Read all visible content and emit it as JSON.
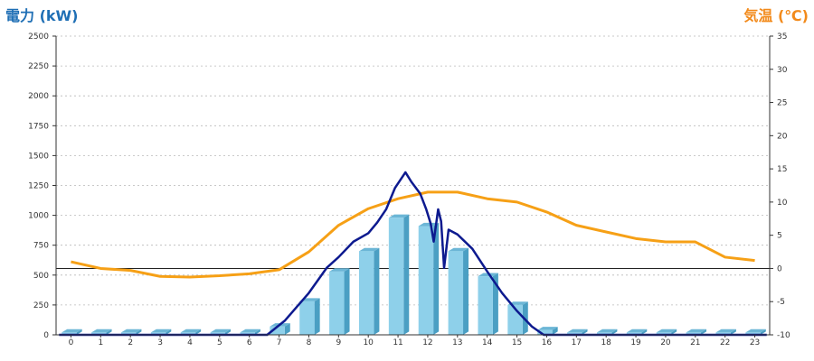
{
  "chart_data": {
    "type": "bar+line",
    "title": "",
    "left_axis": {
      "label": "電力 (kW)",
      "min": 0,
      "max": 2500,
      "ticks": [
        0,
        250,
        500,
        750,
        1000,
        1250,
        1500,
        1750,
        2000,
        2250,
        2500
      ]
    },
    "right_axis": {
      "label": "気温 (℃)",
      "min": -10,
      "max": 35,
      "ticks": [
        -10,
        -5,
        0,
        5,
        10,
        15,
        20,
        25,
        30,
        35
      ]
    },
    "categories": [
      "0",
      "1",
      "2",
      "3",
      "4",
      "5",
      "6",
      "7",
      "8",
      "9",
      "10",
      "11",
      "12",
      "13",
      "14",
      "15",
      "16",
      "17",
      "18",
      "19",
      "20",
      "21",
      "22",
      "23"
    ],
    "bars": {
      "axis": "left",
      "values": [
        20,
        20,
        20,
        20,
        20,
        20,
        20,
        70,
        280,
        530,
        700,
        980,
        910,
        700,
        490,
        250,
        40,
        20,
        20,
        20,
        20,
        20,
        20,
        20
      ]
    },
    "power_line": {
      "axis": "left",
      "points": [
        [
          -0.4,
          0
        ],
        [
          6.6,
          0
        ],
        [
          7.2,
          120
        ],
        [
          8,
          350
        ],
        [
          8.6,
          560
        ],
        [
          9,
          650
        ],
        [
          9.5,
          780
        ],
        [
          10,
          850
        ],
        [
          10.3,
          940
        ],
        [
          10.6,
          1050
        ],
        [
          10.9,
          1230
        ],
        [
          11.25,
          1360
        ],
        [
          11.45,
          1280
        ],
        [
          11.75,
          1180
        ],
        [
          11.95,
          1050
        ],
        [
          12.1,
          930
        ],
        [
          12.2,
          780
        ],
        [
          12.35,
          1050
        ],
        [
          12.45,
          950
        ],
        [
          12.55,
          560
        ],
        [
          12.7,
          880
        ],
        [
          13,
          840
        ],
        [
          13.5,
          720
        ],
        [
          14,
          530
        ],
        [
          14.5,
          350
        ],
        [
          15,
          200
        ],
        [
          15.5,
          70
        ],
        [
          15.9,
          0
        ],
        [
          23.4,
          0
        ]
      ]
    },
    "temperature_line": {
      "axis": "right",
      "points": [
        [
          0,
          1
        ],
        [
          1,
          0
        ],
        [
          2,
          -0.3
        ],
        [
          3,
          -1.2
        ],
        [
          4,
          -1.3
        ],
        [
          5,
          -1.1
        ],
        [
          6,
          -0.8
        ],
        [
          7,
          -0.2
        ],
        [
          8,
          2.5
        ],
        [
          9,
          6.5
        ],
        [
          10,
          9
        ],
        [
          11,
          10.5
        ],
        [
          12,
          11.5
        ],
        [
          13,
          11.5
        ],
        [
          14,
          10.5
        ],
        [
          15,
          10
        ],
        [
          16,
          8.5
        ],
        [
          17,
          6.5
        ],
        [
          18,
          5.5
        ],
        [
          19,
          4.5
        ],
        [
          20,
          4
        ],
        [
          21,
          4
        ],
        [
          22,
          1.7
        ],
        [
          23,
          1.2
        ]
      ]
    },
    "colors": {
      "bar_front": "#8ed0ea",
      "bar_side": "#4b9fc3",
      "bar_top": "#6cb6d6",
      "power_line": "#0d1a8f",
      "temperature_line": "#f6a016",
      "grid": "#b8b8b8",
      "left_title": "#1f6fb5",
      "right_title": "#f28a1b"
    },
    "grid": true
  }
}
